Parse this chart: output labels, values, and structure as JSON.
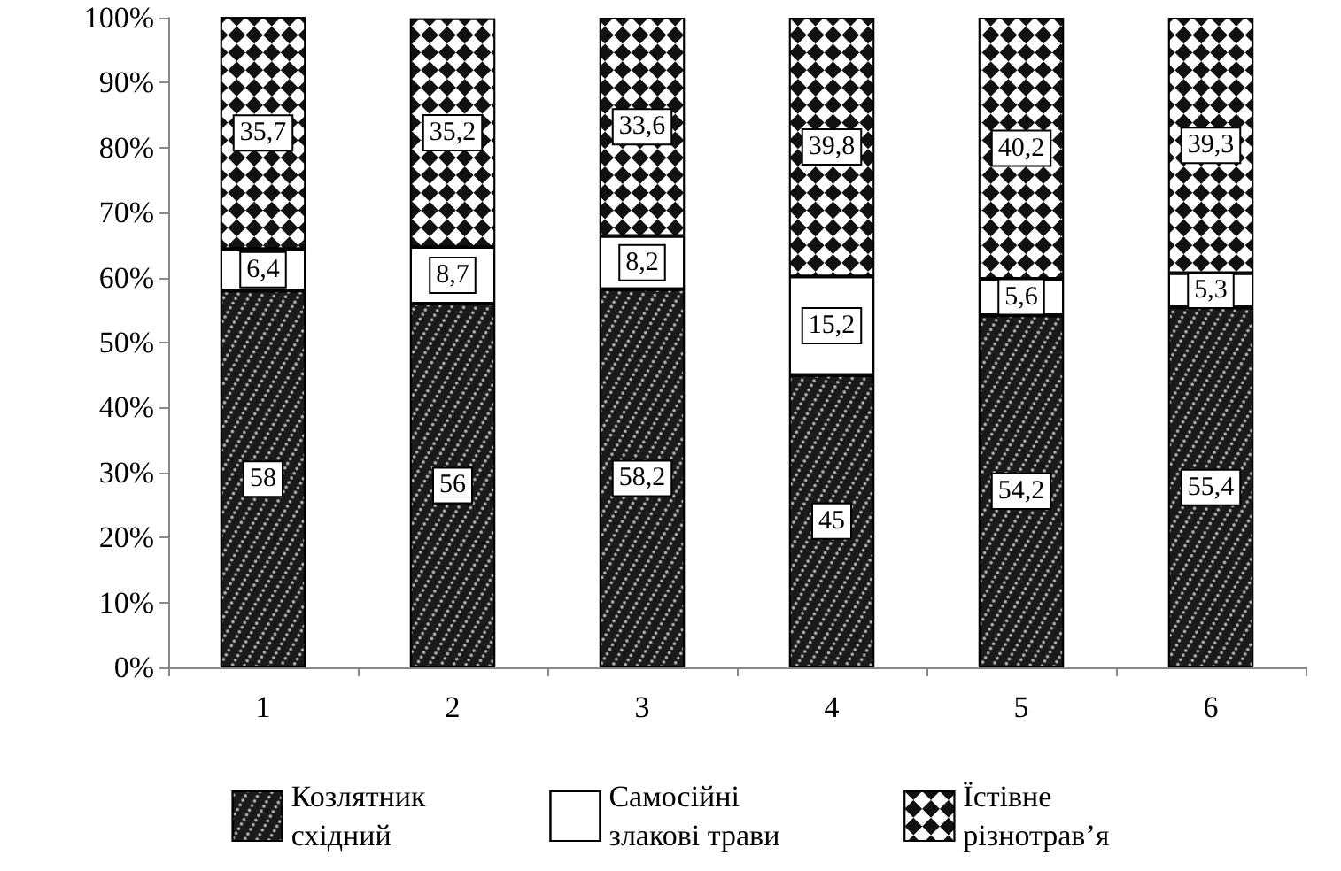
{
  "chart_data": {
    "type": "bar",
    "stacked": true,
    "categories": [
      "1",
      "2",
      "3",
      "4",
      "5",
      "6"
    ],
    "series": [
      {
        "name": "Козлятник східний",
        "color": "#1a1a1a",
        "values": [
          58,
          56,
          58.2,
          45,
          54.2,
          55.4
        ],
        "value_labels": [
          "58",
          "56",
          "58,2",
          "45",
          "54,2",
          "55,4"
        ]
      },
      {
        "name": "Самосійні злакові трави",
        "color": "#ffffff",
        "values": [
          6.4,
          8.7,
          8.2,
          15.2,
          5.6,
          5.3
        ],
        "value_labels": [
          "6,4",
          "8,7",
          "8,2",
          "15,2",
          "5,6",
          "5,3"
        ]
      },
      {
        "name": "Їстівне різнотрав’я",
        "color": "#111111",
        "values": [
          35.7,
          35.2,
          33.6,
          39.8,
          40.2,
          39.3
        ],
        "value_labels": [
          "35,7",
          "35,2",
          "33,6",
          "39,8",
          "40,2",
          "39,3"
        ]
      }
    ],
    "ylim": [
      0,
      100
    ],
    "yticks": [
      {
        "value": 0,
        "label": "0%"
      },
      {
        "value": 10,
        "label": "10%"
      },
      {
        "value": 20,
        "label": "20%"
      },
      {
        "value": 30,
        "label": "30%"
      },
      {
        "value": 40,
        "label": "40%"
      },
      {
        "value": 50,
        "label": "50%"
      },
      {
        "value": 60,
        "label": "60%"
      },
      {
        "value": 70,
        "label": "70%"
      },
      {
        "value": 80,
        "label": "80%"
      },
      {
        "value": 90,
        "label": "90%"
      },
      {
        "value": 100,
        "label": "100%"
      }
    ],
    "grid": false,
    "legend": "bottom"
  }
}
